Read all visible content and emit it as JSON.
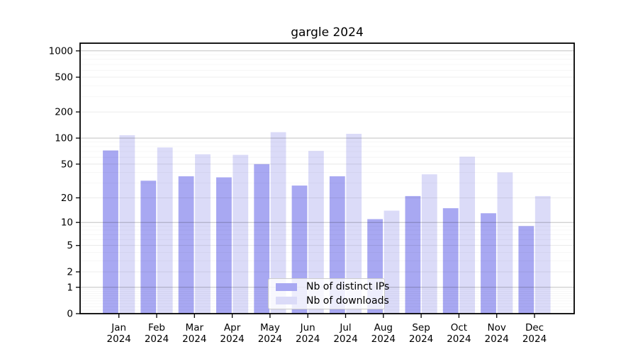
{
  "chart_data": {
    "type": "bar",
    "title": "gargle 2024",
    "categories": [
      "Jan",
      "Feb",
      "Mar",
      "Apr",
      "May",
      "Jun",
      "Jul",
      "Aug",
      "Sep",
      "Oct",
      "Nov",
      "Dec"
    ],
    "x_tick_year": "2024",
    "series": [
      {
        "name": "Nb of distinct IPs",
        "color": "#a8a8f2",
        "values": [
          72,
          32,
          36,
          35,
          50,
          28,
          36,
          11,
          21,
          15,
          13,
          9
        ]
      },
      {
        "name": "Nb of downloads",
        "color": "#dbdbf8",
        "values": [
          108,
          78,
          65,
          64,
          117,
          71,
          112,
          14,
          38,
          61,
          40,
          21
        ]
      }
    ],
    "yscale": "log1p",
    "yticks": [
      1000,
      500,
      200,
      100,
      50,
      20,
      10,
      5,
      2,
      1,
      0
    ],
    "ylim_top": 1200,
    "grid": true,
    "legend_position": "bottom-center",
    "axis_color": "#000000",
    "background_color": "#ffffff"
  }
}
